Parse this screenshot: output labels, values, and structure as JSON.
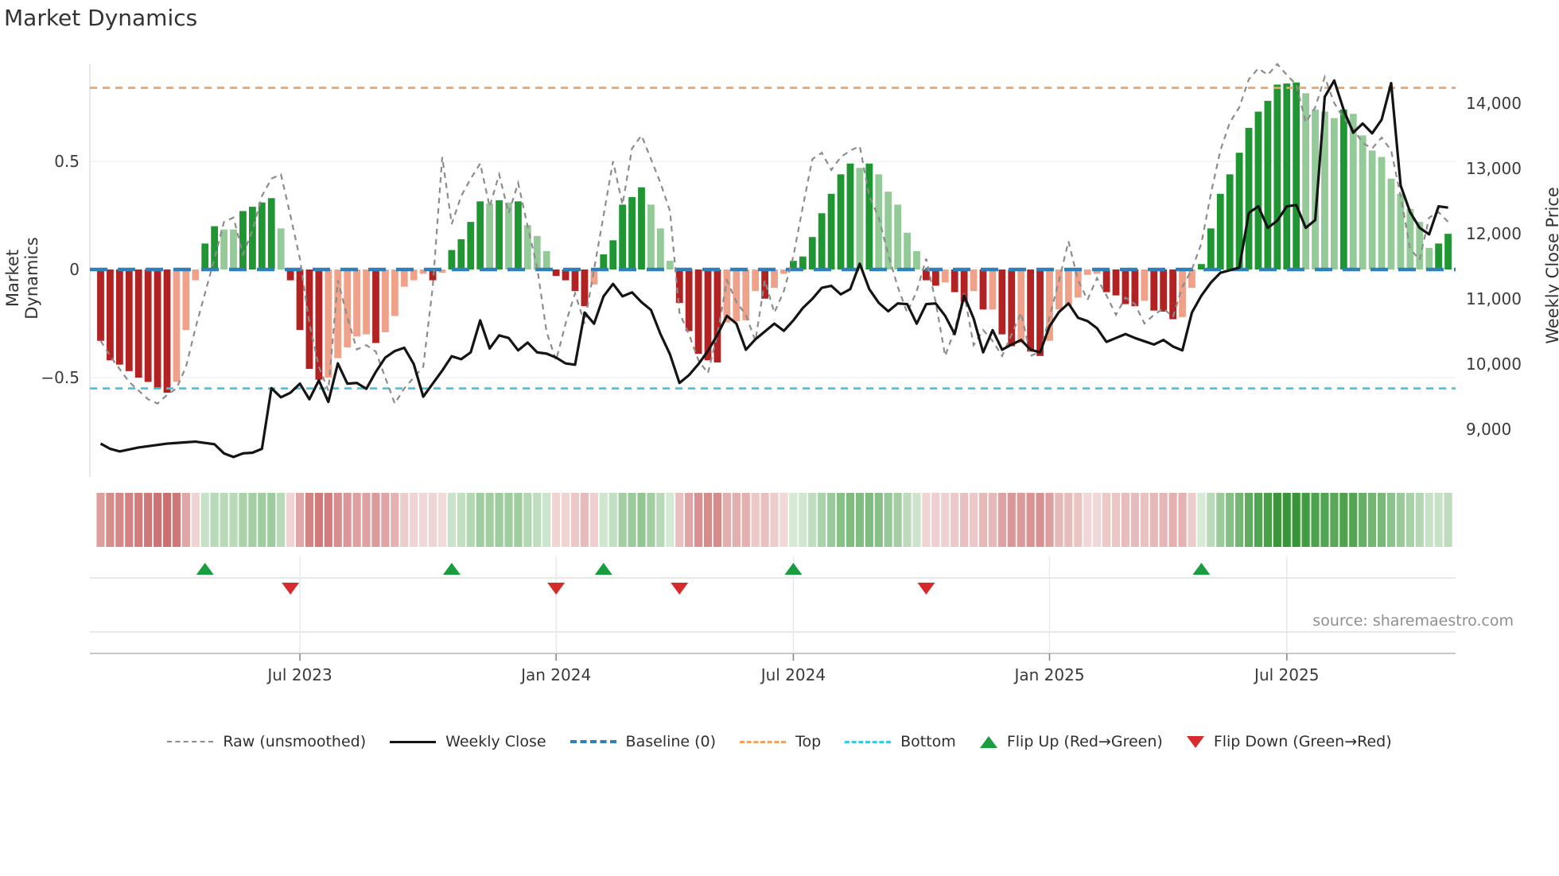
{
  "title": "Market Dynamics",
  "left_axis": {
    "label": "Market Dynamics",
    "tick_labels": [
      "0.5",
      "0",
      "−0.5"
    ],
    "tick_values": [
      0.5,
      0,
      -0.5
    ]
  },
  "right_axis": {
    "label": "Weekly Close Price",
    "tick_labels": [
      "14,000",
      "13,000",
      "12,000",
      "11,000",
      "10,000",
      "9,000"
    ],
    "tick_values": [
      14000,
      13000,
      12000,
      11000,
      10000,
      9000
    ]
  },
  "x_axis": {
    "tick_labels": [
      "Jul 2023",
      "Jan 2024",
      "Jul 2024",
      "Jan 2025",
      "Jul 2025"
    ],
    "tick_weeks": [
      21,
      48,
      73,
      100,
      125
    ]
  },
  "source": "source: sharemaestro.com",
  "legend": {
    "items": [
      {
        "label": "Raw (unsmoothed)",
        "swatch": "raw-dashed-line"
      },
      {
        "label": "Weekly Close",
        "swatch": "solid-black-line"
      },
      {
        "label": "Baseline (0)",
        "swatch": "blue-dashed-line"
      },
      {
        "label": "Top",
        "swatch": "orange-dashed-line"
      },
      {
        "label": "Bottom",
        "swatch": "cyan-dashed-line"
      },
      {
        "label": "Flip Up (Red→Green)",
        "swatch": "green-up-triangle"
      },
      {
        "label": "Flip Down (Green→Red)",
        "swatch": "red-down-triangle"
      }
    ]
  },
  "colors": {
    "bar_red_strong": "#b22222",
    "bar_red_light": "#efa189",
    "bar_green_strong": "#1f9632",
    "bar_green_light": "#94ca98",
    "baseline_blue": "#2f7fb8",
    "top_orange": "#f2a263",
    "bottom_cyan": "#3cc8e6",
    "raw_gray": "#8c8c8c",
    "price_black": "#141414",
    "flip_up_green": "#199d3e",
    "flip_down_red": "#d62b2b",
    "heat_red_rgb": "178,34,34",
    "heat_green_rgb": "34,139,34",
    "grid_light": "#eef2f7",
    "spine": "#dde1e8"
  },
  "chart_data": {
    "type": "bar+line",
    "description": "Weekly oscillator bars with weekly close price line, raw unsmoothed oscillator dashed line, baseline/top/bottom reference lines, sign heatmap strip and flip markers",
    "n_weeks": 143,
    "osc_ylim": [
      -0.96,
      0.95
    ],
    "price_ylim": [
      8270,
      14610
    ],
    "baseline": 0,
    "top_threshold": 0.84,
    "bottom_threshold": -0.55,
    "oscillator": [
      -0.33,
      -0.42,
      -0.44,
      -0.47,
      -0.5,
      -0.52,
      -0.55,
      -0.57,
      -0.52,
      -0.28,
      -0.05,
      0.12,
      0.2,
      0.185,
      0.185,
      0.27,
      0.29,
      0.31,
      0.33,
      0.19,
      -0.05,
      -0.28,
      -0.46,
      -0.51,
      -0.5,
      -0.41,
      -0.36,
      -0.31,
      -0.3,
      -0.34,
      -0.29,
      -0.215,
      -0.08,
      -0.05,
      -0.02,
      -0.05,
      -0.015,
      0.09,
      0.14,
      0.22,
      0.315,
      0.305,
      0.32,
      0.31,
      0.315,
      0.205,
      0.155,
      0.085,
      -0.03,
      -0.05,
      -0.1,
      -0.17,
      -0.07,
      0.07,
      0.135,
      0.3,
      0.335,
      0.38,
      0.3,
      0.19,
      0.04,
      -0.155,
      -0.285,
      -0.39,
      -0.42,
      -0.43,
      -0.245,
      -0.24,
      -0.235,
      -0.1,
      -0.135,
      -0.085,
      -0.02,
      0.04,
      0.06,
      0.15,
      0.26,
      0.35,
      0.44,
      0.49,
      0.47,
      0.49,
      0.44,
      0.36,
      0.3,
      0.17,
      0.085,
      -0.05,
      -0.075,
      -0.06,
      -0.105,
      -0.15,
      -0.1,
      -0.185,
      -0.185,
      -0.3,
      -0.355,
      -0.34,
      -0.38,
      -0.4,
      -0.33,
      -0.185,
      -0.167,
      -0.13,
      -0.025,
      -0.02,
      -0.105,
      -0.12,
      -0.16,
      -0.17,
      -0.145,
      -0.19,
      -0.195,
      -0.23,
      -0.22,
      -0.085,
      0.025,
      0.19,
      0.35,
      0.44,
      0.54,
      0.655,
      0.73,
      0.78,
      0.855,
      0.86,
      0.865,
      0.815,
      0.74,
      0.73,
      0.7,
      0.74,
      0.72,
      0.62,
      0.55,
      0.52,
      0.42,
      0.35,
      0.28,
      0.22,
      0.1,
      0.12,
      0.165
    ],
    "raw": [
      -0.33,
      -0.4,
      -0.46,
      -0.52,
      -0.56,
      -0.6,
      -0.62,
      -0.58,
      -0.55,
      -0.45,
      -0.27,
      -0.11,
      0.05,
      0.22,
      0.24,
      0.07,
      0.18,
      0.34,
      0.42,
      0.44,
      0.25,
      0.05,
      -0.25,
      -0.45,
      -0.56,
      -0.05,
      -0.22,
      -0.37,
      -0.35,
      -0.38,
      -0.5,
      -0.62,
      -0.55,
      -0.5,
      -0.45,
      -0.08,
      0.52,
      0.21,
      0.34,
      0.42,
      0.49,
      0.29,
      0.44,
      0.26,
      0.4,
      0.2,
      0.01,
      -0.29,
      -0.42,
      -0.25,
      -0.11,
      -0.25,
      0.0,
      0.25,
      0.5,
      0.3,
      0.56,
      0.62,
      0.51,
      0.4,
      0.27,
      -0.2,
      -0.3,
      -0.42,
      -0.48,
      -0.3,
      -0.05,
      -0.15,
      -0.21,
      -0.33,
      -0.05,
      -0.2,
      -0.1,
      0.06,
      0.29,
      0.51,
      0.54,
      0.46,
      0.52,
      0.55,
      0.57,
      0.34,
      0.24,
      0.07,
      -0.08,
      -0.2,
      -0.1,
      0.05,
      -0.15,
      -0.4,
      -0.28,
      -0.11,
      -0.35,
      -0.28,
      -0.33,
      -0.4,
      -0.3,
      -0.2,
      -0.4,
      -0.38,
      -0.22,
      -0.05,
      0.13,
      -0.05,
      -0.14,
      -0.04,
      -0.12,
      -0.21,
      -0.13,
      -0.16,
      -0.25,
      -0.21,
      -0.18,
      -0.22,
      -0.08,
      0.0,
      0.12,
      0.35,
      0.55,
      0.68,
      0.75,
      0.88,
      0.93,
      0.9,
      0.95,
      0.9,
      0.855,
      0.68,
      0.75,
      0.89,
      0.77,
      0.7,
      0.65,
      0.585,
      0.56,
      0.61,
      0.55,
      0.34,
      0.095,
      0.045,
      0.24,
      0.265,
      0.22
    ],
    "weekly_close": [
      8780,
      8700,
      8660,
      8690,
      8720,
      8740,
      8760,
      8780,
      8790,
      8800,
      8810,
      8790,
      8770,
      8630,
      8575,
      8630,
      8640,
      8700,
      9630,
      9490,
      9560,
      9700,
      9460,
      9750,
      9420,
      10010,
      9700,
      9710,
      9620,
      9880,
      10100,
      10200,
      10250,
      10000,
      9500,
      9700,
      9900,
      10120,
      10075,
      10180,
      10670,
      10240,
      10440,
      10400,
      10210,
      10330,
      10180,
      10160,
      10100,
      10010,
      9990,
      10790,
      10620,
      11040,
      11230,
      11040,
      11100,
      10950,
      10830,
      10460,
      10150,
      9710,
      9830,
      10000,
      10200,
      10450,
      10740,
      10620,
      10220,
      10380,
      10500,
      10620,
      10510,
      10670,
      10860,
      11000,
      11170,
      11200,
      11070,
      11150,
      11540,
      11150,
      10940,
      10810,
      10930,
      10920,
      10620,
      10920,
      10930,
      10740,
      10460,
      11050,
      10700,
      10180,
      10520,
      10220,
      10300,
      10370,
      10220,
      10180,
      10580,
      10800,
      10930,
      10710,
      10660,
      10550,
      10340,
      10400,
      10460,
      10400,
      10350,
      10300,
      10370,
      10270,
      10210,
      10790,
      11050,
      11250,
      11400,
      11440,
      11480,
      12320,
      12420,
      12090,
      12200,
      12420,
      12440,
      12090,
      12210,
      14100,
      14350,
      13900,
      13550,
      13690,
      13540,
      13750,
      14310,
      12740,
      12330,
      12090,
      11990,
      12420,
      12400
    ],
    "flip_up_weeks": [
      11,
      37,
      53,
      73,
      116
    ],
    "flip_down_weeks": [
      20,
      48,
      61,
      87
    ]
  }
}
